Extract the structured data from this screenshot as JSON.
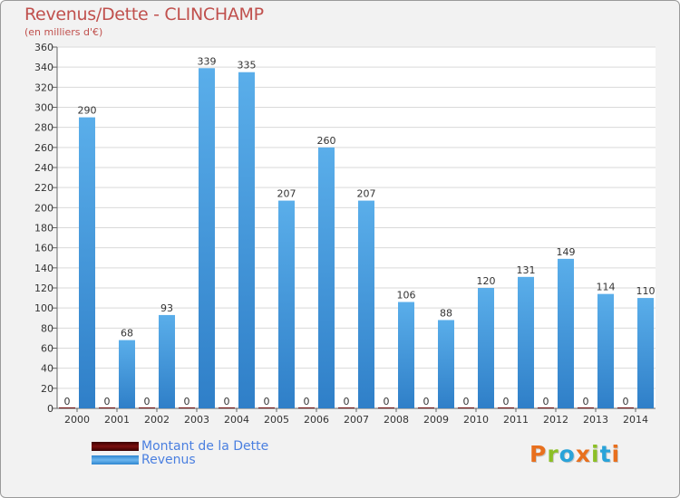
{
  "chart_data": {
    "type": "bar",
    "title": "Revenus/Dette - CLINCHAMP",
    "subtitle": "(en milliers d'€)",
    "categories": [
      "2000",
      "2001",
      "2002",
      "2003",
      "2004",
      "2005",
      "2006",
      "2007",
      "2008",
      "2009",
      "2010",
      "2011",
      "2012",
      "2013",
      "2014"
    ],
    "series": [
      {
        "name": "Montant de la Dette",
        "color": "#6b0a0a",
        "values": [
          0,
          0,
          0,
          0,
          0,
          0,
          0,
          0,
          0,
          0,
          0,
          0,
          0,
          0,
          0
        ]
      },
      {
        "name": "Revenus",
        "color": "#4ea6e6",
        "values": [
          290,
          68,
          93,
          339,
          335,
          207,
          260,
          207,
          106,
          88,
          120,
          131,
          149,
          114,
          110
        ]
      }
    ],
    "ylim": [
      0,
      360
    ],
    "ytick_step": 20,
    "grid": true,
    "legend": "bottom-left"
  },
  "legend": {
    "dette_label": "Montant de la Dette",
    "revenus_label": "Revenus"
  },
  "logo": {
    "letters": [
      "P",
      "r",
      "o",
      "x",
      "i",
      "t",
      "i"
    ],
    "colors": [
      "#e8701e",
      "#8cbf26",
      "#29a3d9",
      "#e8701e",
      "#8cbf26",
      "#29a3d9",
      "#e8701e"
    ]
  }
}
